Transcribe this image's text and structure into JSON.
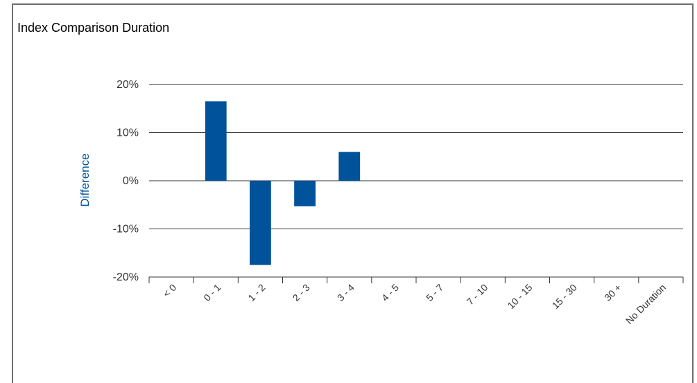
{
  "chart_data": {
    "type": "bar",
    "title": "Index Comparison Duration",
    "ylabel": "Difference",
    "xlabel": "",
    "categories": [
      "< 0",
      "0 - 1",
      "1 - 2",
      "2 - 3",
      "3 - 4",
      "4 - 5",
      "5 - 7",
      "7 - 10",
      "10 - 15",
      "15 - 30",
      "30 +",
      "No Duration"
    ],
    "values": [
      0,
      16.5,
      -17.5,
      -5.3,
      6.0,
      0,
      0,
      0,
      0,
      0,
      0,
      0
    ],
    "ylim": [
      -20,
      20
    ],
    "yticks": [
      -20,
      -10,
      0,
      10,
      20
    ],
    "ytick_labels": [
      "-20%",
      "-10%",
      "0%",
      "10%",
      "20%"
    ],
    "grid": true,
    "legend": "none",
    "bar_color": "#00529b",
    "ylabel_color": "#00529b"
  }
}
